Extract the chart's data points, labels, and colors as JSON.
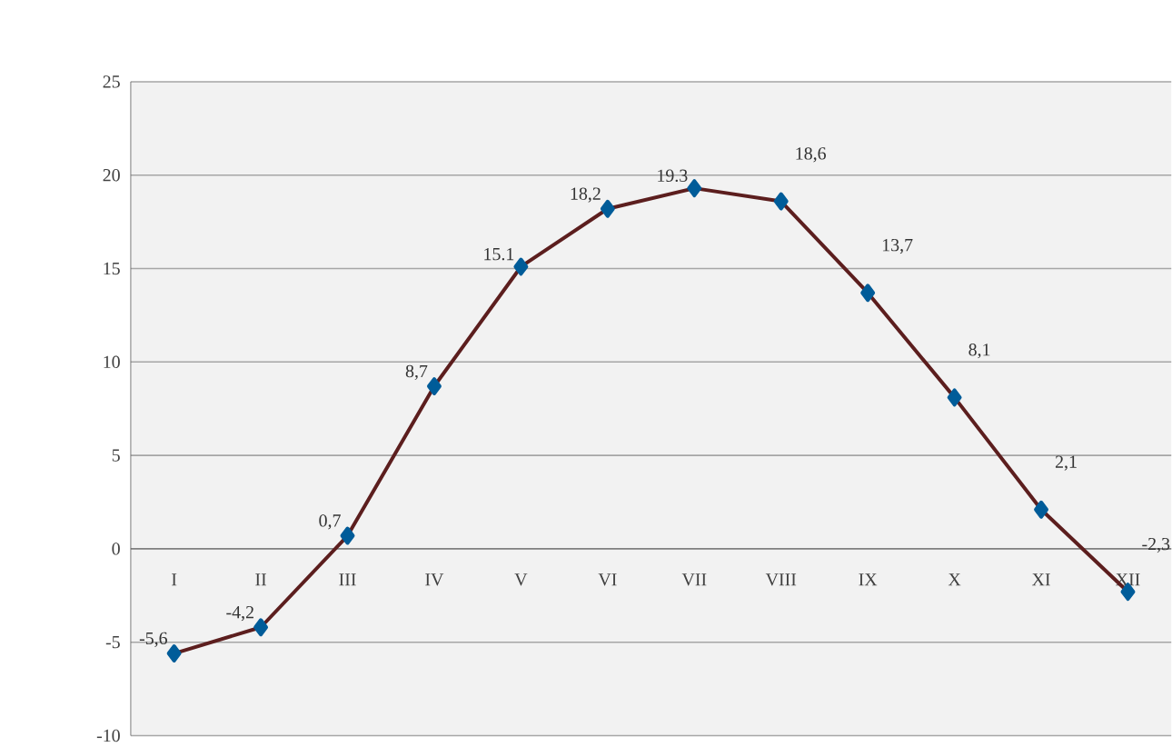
{
  "chart_data": {
    "type": "line",
    "categories": [
      "I",
      "II",
      "III",
      "IV",
      "V",
      "VI",
      "VII",
      "VIII",
      "IX",
      "X",
      "XI",
      "XII"
    ],
    "series": [
      {
        "color": "#5c1e1e",
        "values": [
          -5.6,
          -4.2,
          0.7,
          8.7,
          15.1,
          18.2,
          19.3,
          18.6,
          13.7,
          8.1,
          2.1,
          -2.3
        ],
        "value_labels": [
          "-5,6",
          "-4,2",
          "0,7",
          "8,7",
          "15.1",
          "18,2",
          "19.3",
          "18,6",
          "13,7",
          "8,1",
          "2,1",
          "-2,3"
        ]
      }
    ],
    "ylim": [
      -10,
      25
    ],
    "yticks": [
      -10,
      -5,
      0,
      5,
      10,
      15,
      20,
      25
    ],
    "grid": "y",
    "marker": "diamond",
    "line_style": "solid"
  }
}
